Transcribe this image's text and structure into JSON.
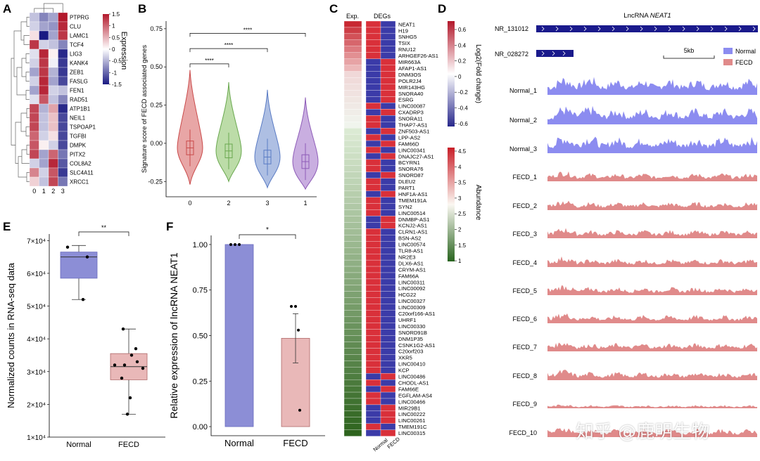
{
  "panels": {
    "A": {
      "letter": "A",
      "genes": [
        "PTPRG",
        "CLU",
        "LAMC1",
        "TCF4",
        "LIG3",
        "KANK4",
        "ZEB1",
        "FASLG",
        "FEN1",
        "RAD51",
        "ATP1B1",
        "NEIL1",
        "TSPOAP1",
        "TGFBI",
        "DMPK",
        "PITX2",
        "COL8A2",
        "SLC4A11",
        "XRCC1"
      ],
      "columns": [
        "0",
        "1",
        "2",
        "3"
      ],
      "matrix": [
        [
          -0.4,
          -0.8,
          -0.6,
          1.5
        ],
        [
          -0.3,
          -0.6,
          -0.7,
          1.4
        ],
        [
          0.2,
          -1.5,
          -0.6,
          1.3
        ],
        [
          1.3,
          -0.3,
          -0.4,
          -0.8
        ],
        [
          -0.2,
          1.4,
          0.1,
          -1.4
        ],
        [
          -0.3,
          1.3,
          -0.1,
          -1.3
        ],
        [
          -0.6,
          1.3,
          -0.5,
          -1.3
        ],
        [
          -0.3,
          1.4,
          -0.6,
          -1.2
        ],
        [
          -0.6,
          1.4,
          -0.3,
          -0.4
        ],
        [
          -0.2,
          1.1,
          -0.4,
          -0.8
        ],
        [
          1.2,
          -0.5,
          0.6,
          -1.4
        ],
        [
          1.2,
          -0.4,
          0.4,
          -1.2
        ],
        [
          1.2,
          -0.4,
          0.4,
          -1.2
        ],
        [
          1.0,
          -0.3,
          0.2,
          -1.2
        ],
        [
          1.1,
          0.1,
          -0.3,
          -1.2
        ],
        [
          1.2,
          -0.6,
          1.0,
          -0.9
        ],
        [
          -0.3,
          -0.6,
          1.4,
          -1.1
        ],
        [
          0.8,
          -0.3,
          1.1,
          -1.3
        ],
        [
          0.3,
          -0.4,
          1.2,
          -0.9
        ]
      ],
      "legend_title": "Expression",
      "legend_ticks": [
        "1.5",
        "1",
        "0.5",
        "0",
        "-0.5",
        "-1",
        "-1.5"
      ]
    },
    "B": {
      "letter": "B",
      "ylabel": "Signature score of FECD associated genes",
      "categories": [
        "0",
        "2",
        "3",
        "1"
      ],
      "colors": [
        "#c94a4a",
        "#6aa84f",
        "#5b7cc4",
        "#8e5cb8"
      ],
      "fills": [
        "#e8a6a6",
        "#bcdca8",
        "#aebfe3",
        "#c9aee0"
      ],
      "y_ticks": [
        "0.75",
        "0.50",
        "0.25",
        "0.00",
        "-0.25"
      ],
      "sig": [
        "****",
        "****",
        "****"
      ]
    },
    "C": {
      "letter": "C",
      "col_exp": "Exp.",
      "col_degs": "DEGs",
      "genes": [
        "NEAT1",
        "H19",
        "SNHG5",
        "TSIX",
        "RNU12",
        "ARHGEF26-AS1",
        "MIR663A",
        "AFAP1-AS1",
        "DNM3OS",
        "POLR2J4",
        "MIR143HG",
        "SNORA40",
        "ESRG",
        "LINC00087",
        "CXADRP3",
        "SNORA11",
        "THAP7-AS1",
        "ZNF503-AS1",
        "LPP-AS2",
        "FAM66D",
        "LINC00341",
        "DNAJC27-AS1",
        "BCYRN1",
        "SNORA76",
        "SNORD87",
        "DLEU2",
        "PART1",
        "HNF1A-AS1",
        "TMEM191A",
        "SYN2",
        "LINC00514",
        "DNMBP-AS1",
        "KCNJ2-AS1",
        "CLRN1-AS1",
        "BSN-AS2",
        "LINC00574",
        "TLR8-AS1",
        "NR2E3",
        "DLX6-AS1",
        "CRYM-AS1",
        "FAM66A",
        "LINC00311",
        "LINC00092",
        "HCG22",
        "LINC00327",
        "LINC00309",
        "C20orf166-AS1",
        "UHRF1",
        "LINC00330",
        "SNORD91B",
        "DNM1P35",
        "CSNK1G2-AS1",
        "C20orf203",
        "XKR5",
        "LINC00410",
        "KCP",
        "LINC00486",
        "CHODL-AS1",
        "FAM66E",
        "EGFLAM-AS4",
        "LINC00466",
        "MIR29B1",
        "LINC00222",
        "LINC00261",
        "TMEM191C",
        "LINC00315"
      ],
      "deg_normal": [
        "r",
        "r",
        "r",
        "r",
        "r",
        "r",
        "b",
        "b",
        "b",
        "b",
        "b",
        "b",
        "b",
        "r",
        "b",
        "r",
        "r",
        "b",
        "r",
        "b",
        "r",
        "b",
        "r",
        "r",
        "b",
        "r",
        "r",
        "b",
        "r",
        "r",
        "r",
        "b",
        "b",
        "r",
        "r",
        "r",
        "r",
        "r",
        "r",
        "r",
        "r",
        "r",
        "r",
        "r",
        "r",
        "r",
        "r",
        "r",
        "r",
        "r",
        "r",
        "r",
        "r",
        "r",
        "r",
        "r",
        "b",
        "r",
        "b",
        "r",
        "r",
        "b",
        "b",
        "b",
        "r",
        "b"
      ],
      "deg_fecd": [
        "b",
        "b",
        "b",
        "b",
        "b",
        "b",
        "r",
        "r",
        "r",
        "r",
        "r",
        "r",
        "r",
        "b",
        "r",
        "b",
        "b",
        "r",
        "b",
        "r",
        "b",
        "r",
        "b",
        "b",
        "r",
        "b",
        "b",
        "r",
        "b",
        "b",
        "b",
        "r",
        "r",
        "b",
        "b",
        "b",
        "b",
        "b",
        "b",
        "b",
        "b",
        "b",
        "b",
        "b",
        "b",
        "b",
        "b",
        "b",
        "b",
        "b",
        "b",
        "b",
        "b",
        "b",
        "b",
        "b",
        "r",
        "b",
        "r",
        "b",
        "b",
        "r",
        "r",
        "r",
        "b",
        "r"
      ],
      "xlabels": [
        "Normal",
        "FECD"
      ],
      "legend1_title": "Log2(Fold change)",
      "legend1_ticks": [
        "0.6",
        "0.4",
        "0.2",
        "0",
        "-0.2",
        "-0.4",
        "-0.6"
      ],
      "legend2_title": "Abundance",
      "legend2_ticks": [
        "4.5",
        "4",
        "3.5",
        "3",
        "2.5",
        "2",
        "1.5",
        "1"
      ]
    },
    "D": {
      "letter": "D",
      "title_prefix": "LncRNA ",
      "title_gene": "NEAT1",
      "transcript1": "NR_131012",
      "transcript2": "NR_028272",
      "scale": "5kb",
      "legend": [
        "Normal",
        "FECD"
      ],
      "tracks": [
        "Normal_1",
        "Normal_2",
        "Normal_3",
        "FECD_1",
        "FECD_2",
        "FECD_3",
        "FECD_4",
        "FECD_5",
        "FECD_6",
        "FECD_7",
        "FECD_8",
        "FECD_9",
        "FECD_10"
      ],
      "normal_color": "#8c8cf0",
      "fecd_color": "#e08a8a"
    },
    "E": {
      "letter": "E",
      "ylabel": "Normalized counts in RNA-seq data",
      "categories": [
        "Normal",
        "FECD"
      ],
      "y_ticks": [
        "7×10⁴",
        "6×10⁴",
        "5×10⁴",
        "4×10⁴",
        "3×10⁴",
        "2×10⁴",
        "1×10⁴"
      ],
      "sig": "**",
      "normal_points": [
        68000,
        65000,
        52000
      ],
      "fecd_points": [
        43000,
        37000,
        35000,
        33000,
        32000,
        32000,
        31000,
        28000,
        22000,
        17000
      ]
    },
    "F": {
      "letter": "F",
      "ylabel": "Relative expression of lncRNA NEAT1",
      "categories": [
        "Normal",
        "FECD"
      ],
      "y_ticks": [
        "1.00",
        "0.75",
        "0.50",
        "0.25",
        "0.00"
      ],
      "values": [
        1.0,
        0.485
      ],
      "error": 0.135,
      "sig": "*",
      "normal_points": [
        1.0,
        1.0,
        1.0
      ],
      "fecd_points": [
        0.66,
        0.66,
        0.53,
        0.09
      ]
    }
  },
  "watermark": "知乎 @鹿明生物"
}
